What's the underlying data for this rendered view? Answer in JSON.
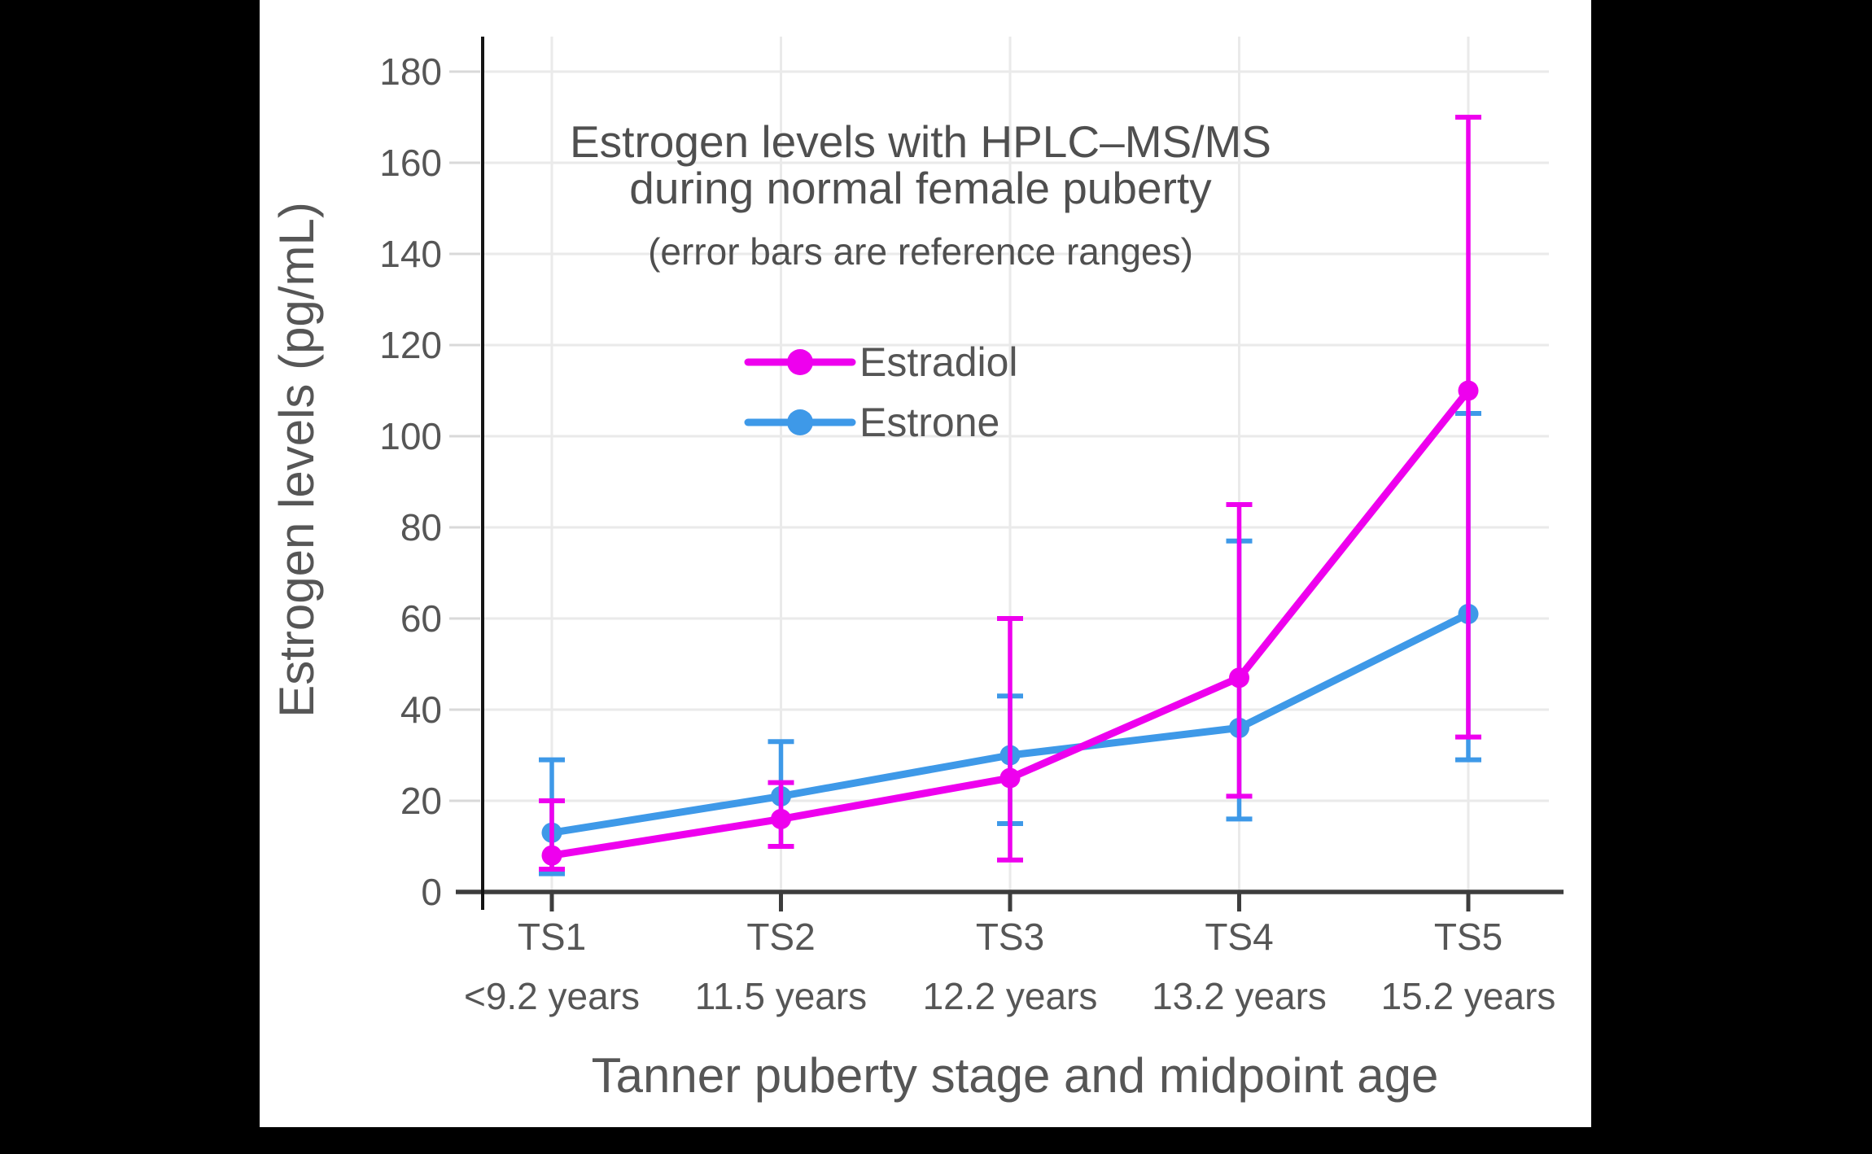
{
  "chart_data": {
    "type": "line",
    "title_lines": [
      "Estrogen levels with HPLC–MS/MS",
      "during normal female puberty"
    ],
    "subtitle": "(error bars are reference ranges)",
    "xlabel": "Tanner puberty stage and midpoint age",
    "ylabel": "Estrogen levels (pg/mL)",
    "categories": [
      "TS1",
      "TS2",
      "TS3",
      "TS4",
      "TS5"
    ],
    "category_ages": [
      "<9.2 years",
      "11.5 years",
      "12.2 years",
      "13.2 years",
      "15.2 years"
    ],
    "y_ticks": [
      0,
      20,
      40,
      60,
      80,
      100,
      120,
      140,
      160,
      180
    ],
    "ylim": [
      0,
      187
    ],
    "grid": true,
    "units": "pg/mL",
    "legend": {
      "position": "upper-center-inside",
      "entries": [
        "Estradiol",
        "Estrone"
      ]
    },
    "series": [
      {
        "name": "Estradiol",
        "color": "#EE00EE",
        "values": [
          8,
          16,
          25,
          47,
          110
        ],
        "range_low": [
          5,
          10,
          7,
          21,
          34
        ],
        "range_high": [
          20,
          24,
          60,
          85,
          170
        ]
      },
      {
        "name": "Estrone",
        "color": "#3E99E8",
        "values": [
          13,
          21,
          30,
          36,
          61
        ],
        "range_low": [
          4,
          10,
          15,
          16,
          29
        ],
        "range_high": [
          29,
          33,
          43,
          77,
          105
        ]
      }
    ]
  },
  "colors": {
    "background": "#000000",
    "canvas": "#ffffff",
    "grid": "#eaeaea",
    "tick_stub": "#d9d9d9",
    "x_axis": "#3d3d3d",
    "y_axis": "#141414",
    "text": "#565656",
    "title_text": "#4f4f4f"
  }
}
